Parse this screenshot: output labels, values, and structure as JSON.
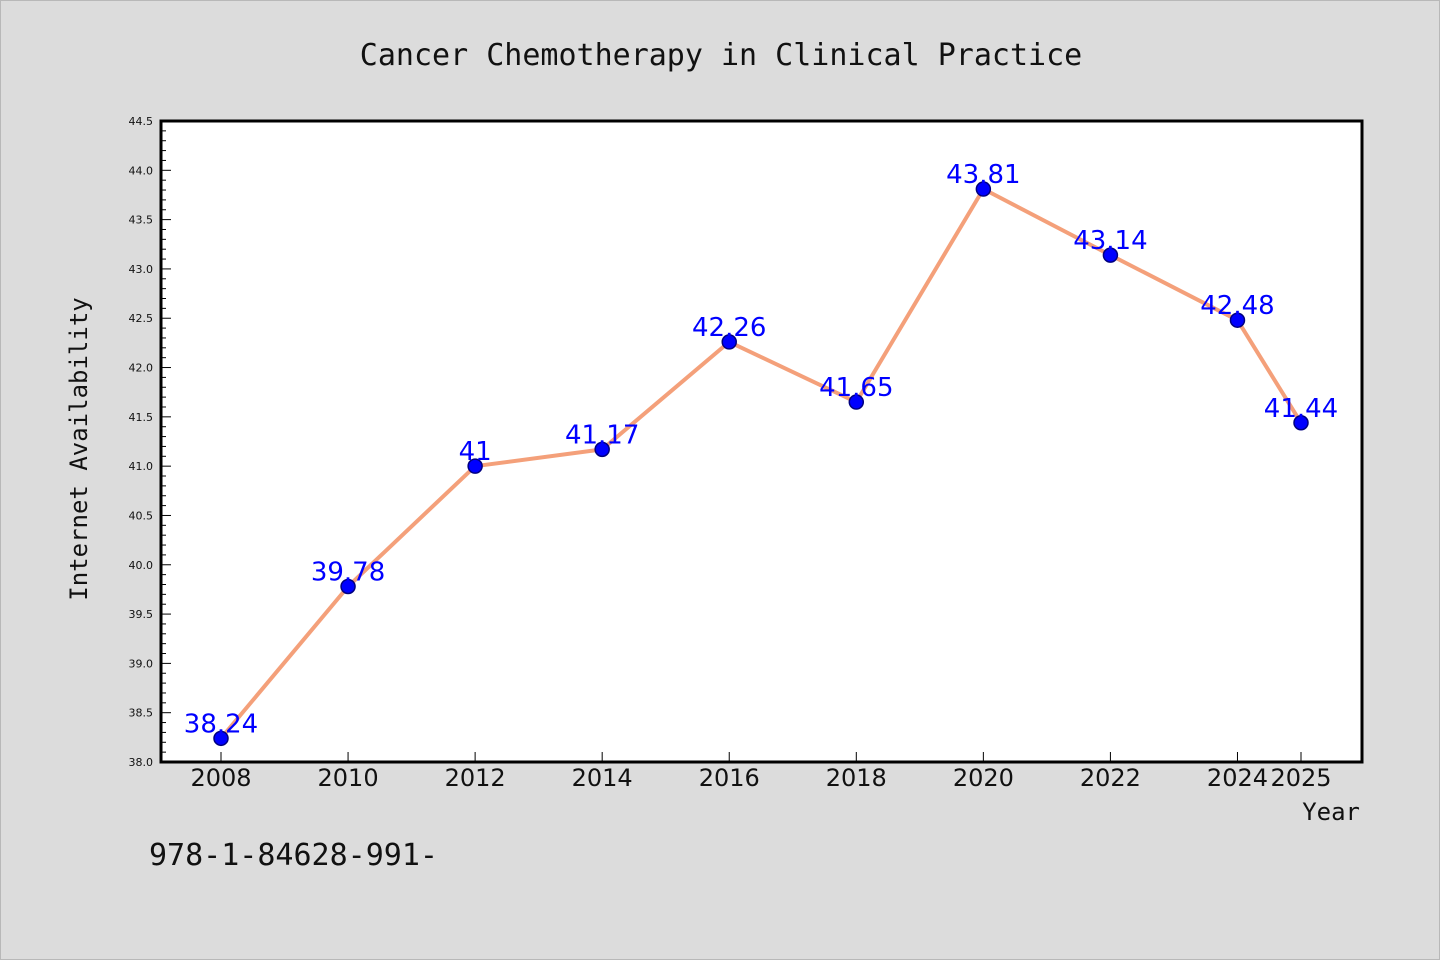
{
  "chart_data": {
    "type": "line",
    "title": "Cancer Chemotherapy in Clinical Practice",
    "xlabel": "Year",
    "ylabel": "Internet Availability",
    "x": [
      "2008",
      "2010",
      "2012",
      "2014",
      "2016",
      "2018",
      "2020",
      "2022",
      "2024",
      "2025"
    ],
    "values": [
      38.24,
      39.78,
      41,
      41.17,
      42.26,
      41.65,
      43.81,
      43.14,
      42.48,
      41.44
    ],
    "data_labels": [
      "38.24",
      "39.78",
      "41",
      "41.17",
      "42.26",
      "41.65",
      "43.81",
      "43.14",
      "42.48",
      "41.44"
    ],
    "ylim": [
      38.0,
      44.5
    ],
    "yticks": [
      "38.0",
      "38.5",
      "39.0",
      "39.5",
      "40.0",
      "40.5",
      "41.0",
      "41.5",
      "42.0",
      "42.5",
      "43.0",
      "43.5",
      "44.0",
      "44.5"
    ],
    "grid": false,
    "legend": "none",
    "colors": {
      "line": "#f4a07a",
      "marker": "#0000ff",
      "marker_edge": "#000080",
      "label": "#0000ff",
      "background": "#dcdcdc",
      "plot_background": "#ffffff"
    }
  },
  "footer": {
    "text": "978-1-84628-991-"
  }
}
